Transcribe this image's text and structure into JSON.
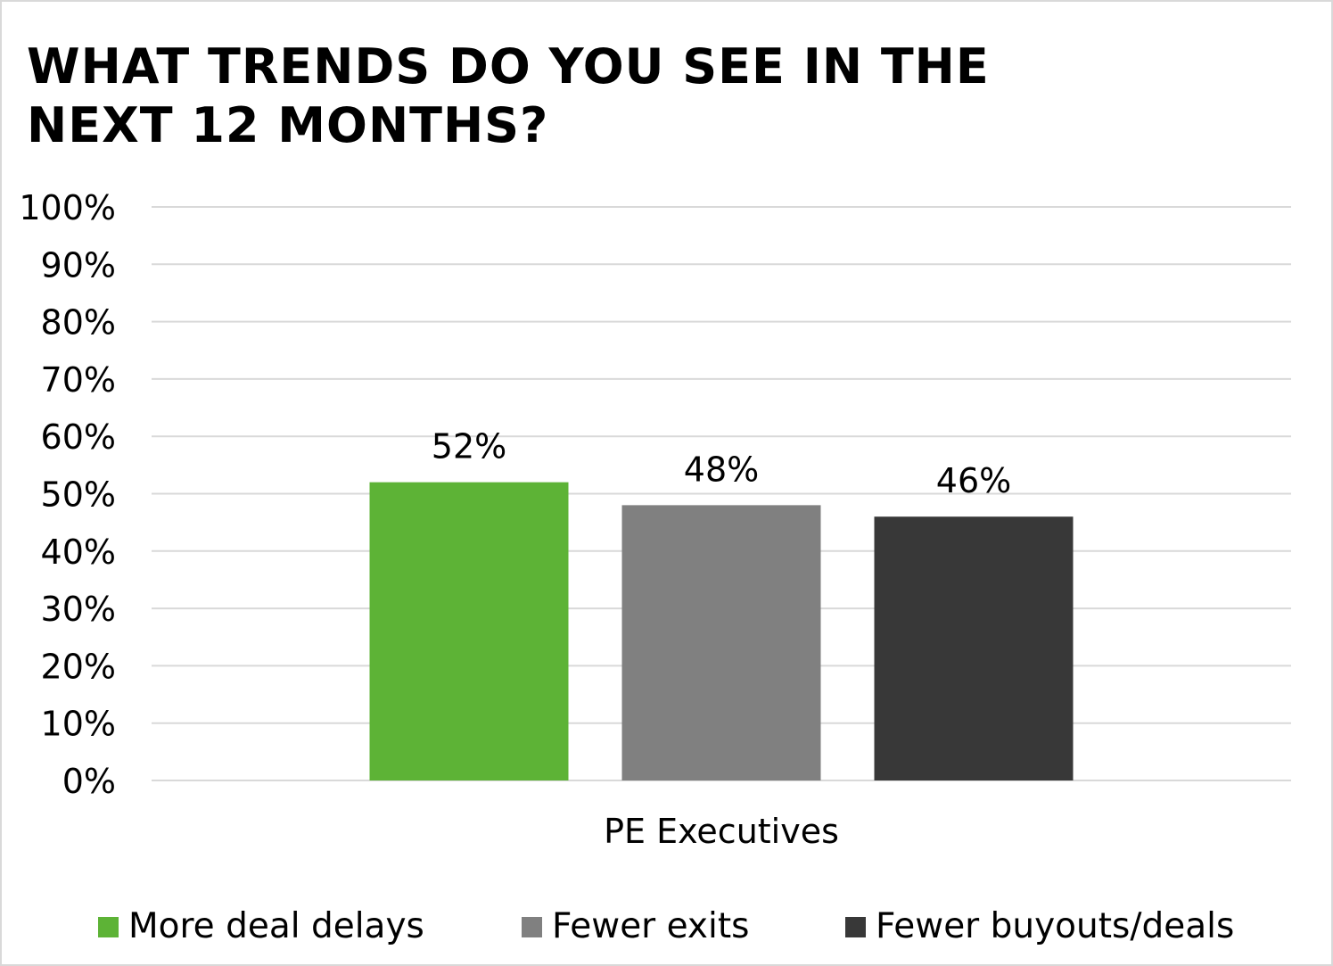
{
  "chart_data": {
    "type": "bar",
    "title": "WHAT TRENDS DO YOU SEE IN THE\nNEXT 12 MONTHS?",
    "categories": [
      "PE Executives"
    ],
    "series": [
      {
        "name": "More deal delays",
        "values": [
          52
        ],
        "color": "#5db336",
        "label": "52%"
      },
      {
        "name": "Fewer exits",
        "values": [
          48
        ],
        "color": "#808080",
        "label": "48%"
      },
      {
        "name": "Fewer buyouts/deals",
        "values": [
          46
        ],
        "color": "#383838",
        "label": "46%"
      }
    ],
    "y_ticks": [
      "0%",
      "10%",
      "20%",
      "30%",
      "40%",
      "50%",
      "60%",
      "70%",
      "80%",
      "90%",
      "100%"
    ],
    "ylim": [
      0,
      100
    ],
    "xlabel": "",
    "ylabel": "",
    "grid": true,
    "legend_position": "bottom",
    "gridline_color": "#d9d9d9"
  }
}
